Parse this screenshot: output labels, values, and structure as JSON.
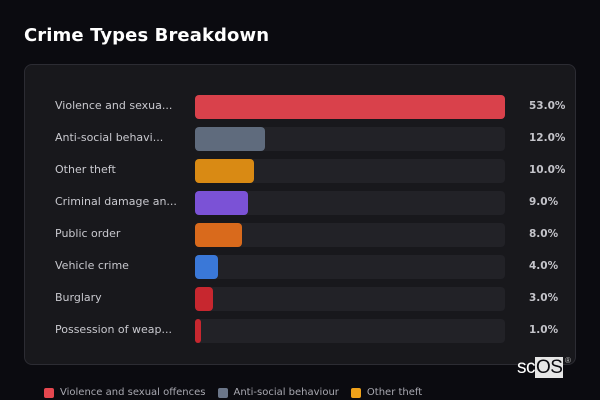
{
  "header": {
    "title": "Crime Types Breakdown"
  },
  "chart_data": {
    "type": "bar",
    "orientation": "horizontal",
    "title": "Crime Types Breakdown",
    "categories": [
      "Violence and sexual offences",
      "Anti-social behaviour",
      "Other theft",
      "Criminal damage and arson",
      "Public order",
      "Vehicle crime",
      "Burglary",
      "Possession of weapons"
    ],
    "display_labels": [
      "Violence and sexua...",
      "Anti-social behavi...",
      "Other theft",
      "Criminal damage an...",
      "Public order",
      "Vehicle crime",
      "Burglary",
      "Possession of weap..."
    ],
    "values": [
      53.0,
      12.0,
      10.0,
      9.0,
      8.0,
      4.0,
      3.0,
      1.0
    ],
    "value_labels": [
      "53.0%",
      "12.0%",
      "10.0%",
      "9.0%",
      "8.0%",
      "4.0%",
      "3.0%",
      "1.0%"
    ],
    "colors": [
      "#d9414b",
      "#5f6b7d",
      "#d98a14",
      "#7b52d6",
      "#d96a1c",
      "#3a78d8",
      "#c7272f",
      "#c7272f"
    ],
    "unit": "%",
    "xlabel": "",
    "ylabel": "",
    "legend_position": "bottom",
    "grid": false
  },
  "rows": [
    {
      "label": "Violence and sexua...",
      "value": "53.0%",
      "pct": 100,
      "color": "#d9414b"
    },
    {
      "label": "Anti-social behavi...",
      "value": "12.0%",
      "pct": 22.6,
      "color": "#5f6b7d"
    },
    {
      "label": "Other theft",
      "value": "10.0%",
      "pct": 18.9,
      "color": "#d98a14"
    },
    {
      "label": "Criminal damage an...",
      "value": "9.0%",
      "pct": 17.0,
      "color": "#7b52d6"
    },
    {
      "label": "Public order",
      "value": "8.0%",
      "pct": 15.1,
      "color": "#d96a1c"
    },
    {
      "label": "Vehicle crime",
      "value": "4.0%",
      "pct": 7.5,
      "color": "#3a78d8"
    },
    {
      "label": "Burglary",
      "value": "3.0%",
      "pct": 5.7,
      "color": "#c7272f"
    },
    {
      "label": "Possession of weap...",
      "value": "1.0%",
      "pct": 1.9,
      "color": "#c7272f"
    }
  ],
  "legend": [
    {
      "label": "Violence and sexual offences",
      "color": "#e5474f"
    },
    {
      "label": "Anti-social behaviour",
      "color": "#6b7689"
    },
    {
      "label": "Other theft",
      "color": "#f0a21a"
    }
  ],
  "watermark": {
    "sc": "sc",
    "os": "OS",
    "reg": "®"
  }
}
